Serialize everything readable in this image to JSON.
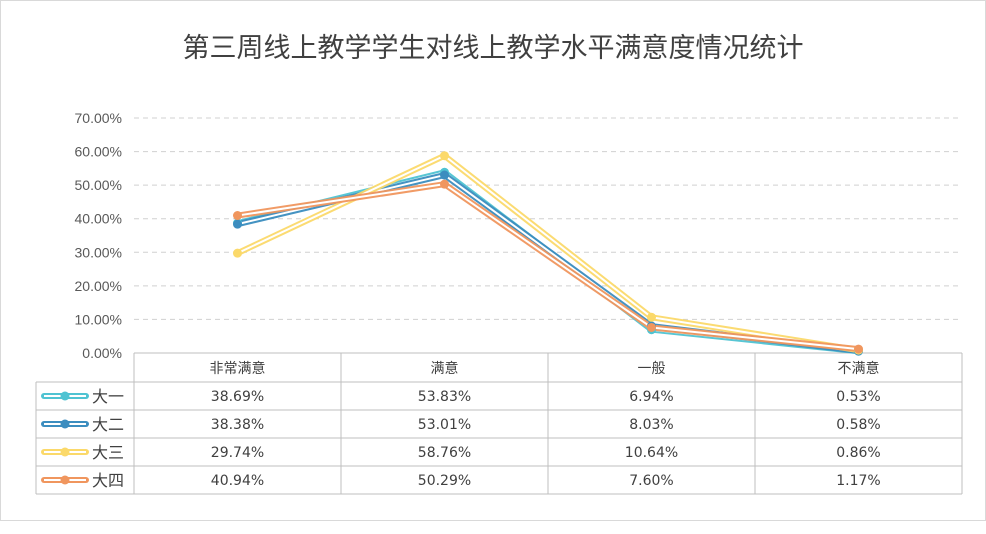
{
  "chart_data": {
    "type": "line",
    "title": "第三周线上教学学生对线上教学水平满意度情况统计",
    "categories": [
      "非常满意",
      "满意",
      "一般",
      "不满意"
    ],
    "ylim": [
      0,
      70
    ],
    "yticks": [
      "0.00%",
      "10.00%",
      "20.00%",
      "30.00%",
      "40.00%",
      "50.00%",
      "60.00%",
      "70.00%"
    ],
    "ytick_values": [
      0,
      10,
      20,
      30,
      40,
      50,
      60,
      70
    ],
    "grid": true,
    "data_table": true,
    "series": [
      {
        "name": "大一",
        "color": "#4fc3d2",
        "values": [
          38.69,
          53.83,
          6.94,
          0.53
        ],
        "labels": [
          "38.69%",
          "53.83%",
          "6.94%",
          "0.53%"
        ]
      },
      {
        "name": "大二",
        "color": "#3c8dbf",
        "values": [
          38.38,
          53.01,
          8.03,
          0.58
        ],
        "labels": [
          "38.38%",
          "53.01%",
          "8.03%",
          "0.58%"
        ]
      },
      {
        "name": "大三",
        "color": "#fbd96a",
        "values": [
          29.74,
          58.76,
          10.64,
          0.86
        ],
        "labels": [
          "29.74%",
          "58.76%",
          "10.64%",
          "0.86%"
        ]
      },
      {
        "name": "大四",
        "color": "#f0965e",
        "values": [
          40.94,
          50.29,
          7.6,
          1.17
        ],
        "labels": [
          "40.94%",
          "50.29%",
          "7.60%",
          "1.17%"
        ]
      }
    ]
  }
}
